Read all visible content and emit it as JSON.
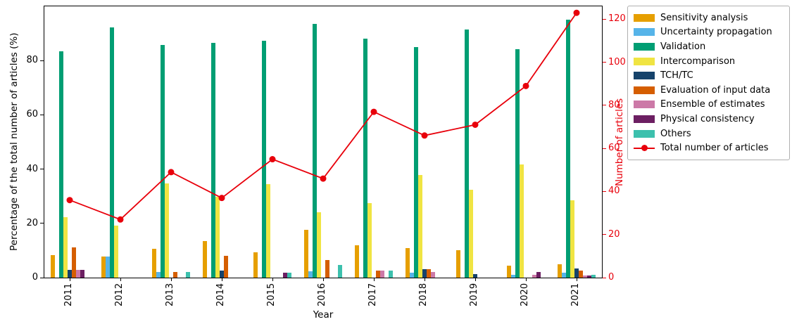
{
  "chart_data": {
    "type": "bar",
    "title": "",
    "xlabel": "Year",
    "ylabel_left": "Percentage of the total number of articles (%)",
    "ylabel_right": "Number of articles",
    "categories": [
      "2011",
      "2012",
      "2013",
      "2014",
      "2015",
      "2016",
      "2017",
      "2018",
      "2019",
      "2020",
      "2021"
    ],
    "left_axis": {
      "min": 0,
      "max": 100,
      "ticks": [
        0,
        20,
        40,
        60,
        80
      ]
    },
    "right_axis": {
      "min": 0,
      "max": 126,
      "ticks": [
        0,
        20,
        40,
        60,
        80,
        100,
        120
      ],
      "color": "#e8000b"
    },
    "grid": false,
    "legend_position": "outside upper right",
    "series": [
      {
        "name": "Sensitivity analysis",
        "color": "#e69f00",
        "values": [
          8.3,
          7.7,
          10.6,
          13.5,
          9.3,
          17.5,
          11.8,
          10.8,
          10.0,
          4.5,
          5.0
        ]
      },
      {
        "name": "Uncertainty propagation",
        "color": "#56b4e9",
        "values": [
          0,
          7.7,
          2.0,
          0,
          0,
          2.3,
          0,
          1.7,
          0,
          1.1,
          1.7
        ]
      },
      {
        "name": "Validation",
        "color": "#009e73",
        "values": [
          83.3,
          92.3,
          85.7,
          86.5,
          87.3,
          93.5,
          88.2,
          84.9,
          91.5,
          84.3,
          95.1
        ]
      },
      {
        "name": "Intercomparison",
        "color": "#f0e442",
        "values": [
          22.2,
          19.2,
          34.7,
          29.7,
          34.5,
          24.1,
          27.5,
          37.9,
          32.4,
          41.6,
          28.5
        ]
      },
      {
        "name": "TCH/TC",
        "color": "#16436b",
        "values": [
          2.8,
          0,
          0,
          2.7,
          0,
          0,
          0,
          3.0,
          1.4,
          0,
          3.3
        ]
      },
      {
        "name": "Evaluation of input data",
        "color": "#d55e00",
        "values": [
          11.1,
          0,
          2.0,
          8.1,
          0,
          6.5,
          2.5,
          3.0,
          0,
          0,
          2.5
        ]
      },
      {
        "name": "Ensemble of estimates",
        "color": "#cc79a7",
        "values": [
          2.8,
          0,
          0,
          0,
          0,
          0,
          2.5,
          2.0,
          0,
          1.1,
          0.8
        ]
      },
      {
        "name": "Physical consistency",
        "color": "#6c1f62",
        "values": [
          2.8,
          0,
          0,
          0,
          1.8,
          0,
          0,
          0,
          0,
          2.2,
          0.8
        ]
      },
      {
        "name": "Others",
        "color": "#3cc0ad",
        "values": [
          0,
          0,
          2.0,
          0,
          1.8,
          4.6,
          2.5,
          0,
          0,
          0,
          1.0
        ]
      }
    ],
    "line_series": {
      "name": "Total number of articles",
      "color": "#e8000b",
      "axis": "right",
      "values": [
        36,
        27,
        49,
        37,
        55,
        46,
        77,
        66,
        71,
        89,
        123
      ]
    }
  }
}
